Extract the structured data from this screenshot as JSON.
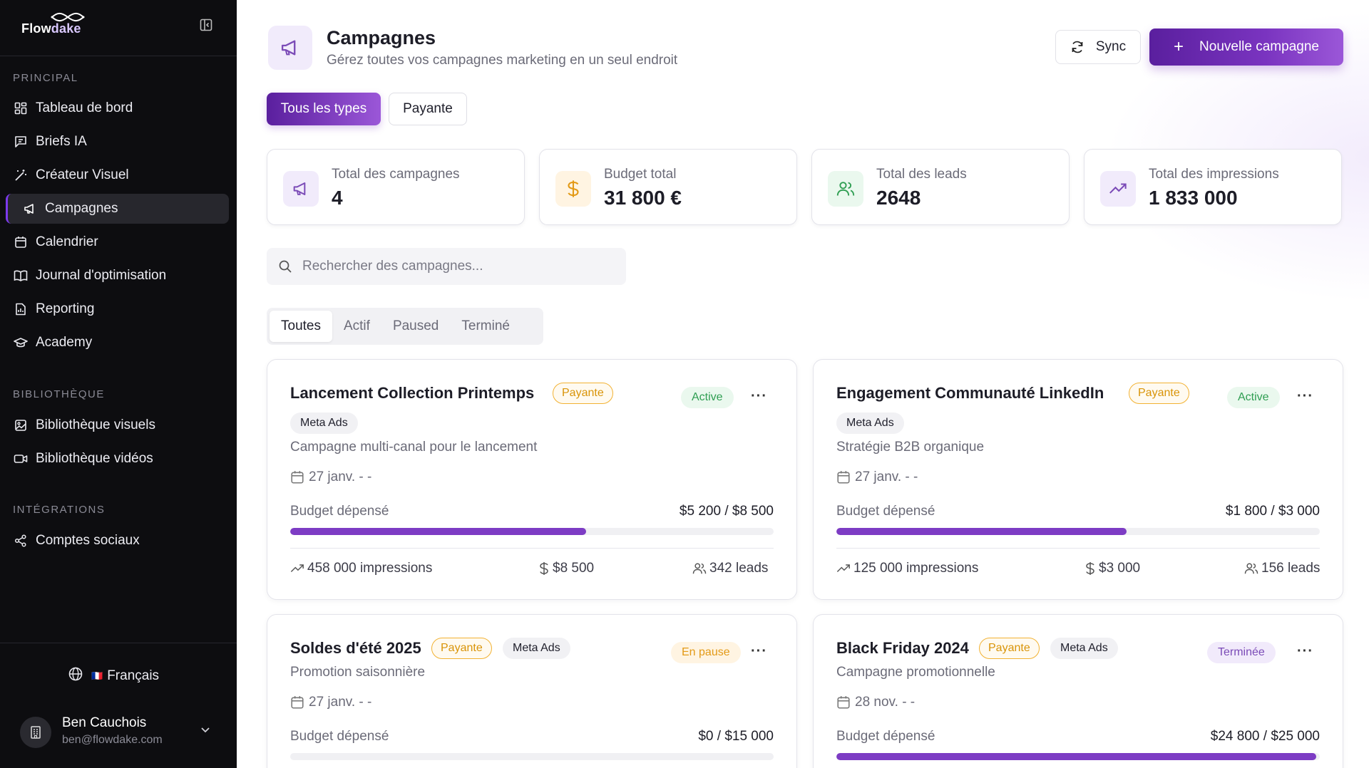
{
  "app": {
    "logo_prefix": "Flow",
    "logo_suffix": "dake"
  },
  "sidebar": {
    "sections": [
      {
        "label": "PRINCIPAL"
      },
      {
        "label": "BIBLIOTHÈQUE"
      },
      {
        "label": "INTÉGRATIONS"
      }
    ],
    "items": [
      {
        "label": "Tableau de bord",
        "icon": "dashboard-icon"
      },
      {
        "label": "Briefs IA",
        "icon": "message-icon"
      },
      {
        "label": "Créateur Visuel",
        "icon": "magic-wand-icon"
      },
      {
        "label": "Campagnes",
        "icon": "megaphone-icon",
        "active": true
      },
      {
        "label": "Calendrier",
        "icon": "calendar-icon"
      },
      {
        "label": "Journal d'optimisation",
        "icon": "book-icon"
      },
      {
        "label": "Reporting",
        "icon": "report-icon"
      },
      {
        "label": "Academy",
        "icon": "graduation-cap-icon"
      },
      {
        "label": "Bibliothèque visuels",
        "icon": "image-icon"
      },
      {
        "label": "Bibliothèque vidéos",
        "icon": "video-icon"
      },
      {
        "label": "Comptes sociaux",
        "icon": "share-icon"
      }
    ],
    "language": {
      "flag": "🇫🇷",
      "label": "Français"
    },
    "user": {
      "name": "Ben Cauchois",
      "email": "ben@flowdake.com"
    }
  },
  "header": {
    "title": "Campagnes",
    "subtitle": "Gérez toutes vos campagnes marketing en un seul endroit",
    "sync_label": "Sync",
    "new_label": "Nouvelle campagne"
  },
  "type_filters": [
    {
      "label": "Tous les types",
      "selected": true
    },
    {
      "label": "Payante",
      "selected": false
    }
  ],
  "stats": [
    {
      "label": "Total des campagnes",
      "value": "4",
      "icon": "megaphone-icon",
      "color": "#7b4bb7",
      "bg": "#f1ebfb"
    },
    {
      "label": "Budget total",
      "value": "31 800 €",
      "icon": "dollar-icon",
      "color": "#e39a17",
      "bg": "#fff4e2"
    },
    {
      "label": "Total des leads",
      "value": "2648",
      "icon": "users-icon",
      "color": "#2f9e52",
      "bg": "#eaf8ee"
    },
    {
      "label": "Total des impressions",
      "value": "1 833 000",
      "icon": "trending-up-icon",
      "color": "#7b4bb7",
      "bg": "#f1ebfb"
    }
  ],
  "search": {
    "placeholder": "Rechercher des campagnes..."
  },
  "status_tabs": [
    {
      "label": "Toutes",
      "selected": true
    },
    {
      "label": "Actif",
      "selected": false
    },
    {
      "label": "Paused",
      "selected": false
    },
    {
      "label": "Terminé",
      "selected": false
    }
  ],
  "campaigns": [
    {
      "title": "Lancement Collection Printemps",
      "type": "Payante",
      "platform": "Meta Ads",
      "status": "Active",
      "description": "Campagne multi-canal pour le lancement",
      "date": "27 janv. - -",
      "budget_label": "Budget dépensé",
      "budget_value": "$5 200 / $8 500",
      "progress": 0.612,
      "impressions": "458 000 impressions",
      "budget": "$8 500",
      "leads": "342 leads"
    },
    {
      "title": "Engagement Communauté LinkedIn",
      "type": "Payante",
      "platform": "Meta Ads",
      "status": "Active",
      "description": "Stratégie B2B organique",
      "date": "27 janv. - -",
      "budget_label": "Budget dépensé",
      "budget_value": "$1 800 / $3 000",
      "progress": 0.6,
      "impressions": "125 000 impressions",
      "budget": "$3 000",
      "leads": "156 leads"
    },
    {
      "title": "Soldes d'été 2025",
      "type": "Payante",
      "platform": "Meta Ads",
      "status": "En pause",
      "description": "Promotion saisonnière",
      "date": "27 janv. - -",
      "budget_label": "Budget dépensé",
      "budget_value": "$0 / $15 000",
      "progress": 0.0
    },
    {
      "title": "Black Friday 2024",
      "type": "Payante",
      "platform": "Meta Ads",
      "status": "Terminée",
      "description": "Campagne promotionnelle",
      "date": "28 nov. - -",
      "budget_label": "Budget dépensé",
      "budget_value": "$24 800 / $25 000",
      "progress": 0.992
    }
  ]
}
